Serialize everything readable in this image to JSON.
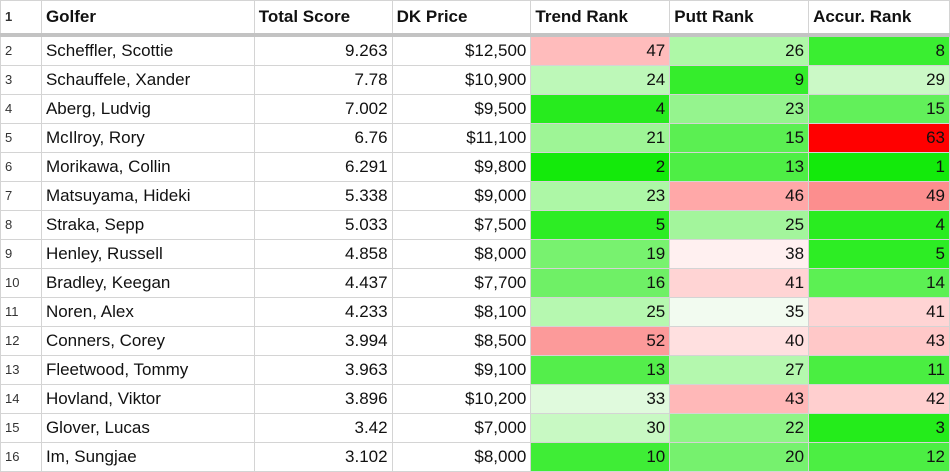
{
  "columns": [
    "Golfer",
    "Total Score",
    "DK Price",
    "Trend Rank",
    "Putt Rank",
    "Accur. Rank"
  ],
  "header_row_number": "1",
  "rows": [
    {
      "n": "2",
      "golfer": "Scheffler, Scottie",
      "score": "9.263",
      "price": "$12,500",
      "trend": "47",
      "putt": "26",
      "accur": "8"
    },
    {
      "n": "3",
      "golfer": "Schauffele, Xander",
      "score": "7.78",
      "price": "$10,900",
      "trend": "24",
      "putt": "9",
      "accur": "29"
    },
    {
      "n": "4",
      "golfer": "Aberg, Ludvig",
      "score": "7.002",
      "price": "$9,500",
      "trend": "4",
      "putt": "23",
      "accur": "15"
    },
    {
      "n": "5",
      "golfer": "McIlroy, Rory",
      "score": "6.76",
      "price": "$11,100",
      "trend": "21",
      "putt": "15",
      "accur": "63"
    },
    {
      "n": "6",
      "golfer": "Morikawa, Collin",
      "score": "6.291",
      "price": "$9,800",
      "trend": "2",
      "putt": "13",
      "accur": "1"
    },
    {
      "n": "7",
      "golfer": "Matsuyama, Hideki",
      "score": "5.338",
      "price": "$9,000",
      "trend": "23",
      "putt": "46",
      "accur": "49"
    },
    {
      "n": "8",
      "golfer": "Straka, Sepp",
      "score": "5.033",
      "price": "$7,500",
      "trend": "5",
      "putt": "25",
      "accur": "4"
    },
    {
      "n": "9",
      "golfer": "Henley, Russell",
      "score": "4.858",
      "price": "$8,000",
      "trend": "19",
      "putt": "38",
      "accur": "5"
    },
    {
      "n": "10",
      "golfer": "Bradley, Keegan",
      "score": "4.437",
      "price": "$7,700",
      "trend": "16",
      "putt": "41",
      "accur": "14"
    },
    {
      "n": "11",
      "golfer": "Noren, Alex",
      "score": "4.233",
      "price": "$8,100",
      "trend": "25",
      "putt": "35",
      "accur": "41"
    },
    {
      "n": "12",
      "golfer": "Conners, Corey",
      "score": "3.994",
      "price": "$8,500",
      "trend": "52",
      "putt": "40",
      "accur": "43"
    },
    {
      "n": "13",
      "golfer": "Fleetwood, Tommy",
      "score": "3.963",
      "price": "$9,100",
      "trend": "13",
      "putt": "27",
      "accur": "11"
    },
    {
      "n": "14",
      "golfer": "Hovland, Viktor",
      "score": "3.896",
      "price": "$10,200",
      "trend": "33",
      "putt": "43",
      "accur": "42"
    },
    {
      "n": "15",
      "golfer": "Glover, Lucas",
      "score": "3.42",
      "price": "$7,000",
      "trend": "30",
      "putt": "22",
      "accur": "3"
    },
    {
      "n": "16",
      "golfer": "Im, Sungjae",
      "score": "3.102",
      "price": "$8,000",
      "trend": "10",
      "putt": "20",
      "accur": "12"
    }
  ],
  "cell_colors": {
    "trend": [
      "#ffbcbc",
      "#bdf8b8",
      "#27eb1e",
      "#9ef596",
      "#14ea0b",
      "#adf7a6",
      "#2ded24",
      "#78f26f",
      "#6ff066",
      "#b6f8b0",
      "#fc9a9a",
      "#54ee4b",
      "#e0fadd",
      "#c8f9c3",
      "#3fed36"
    ],
    "putt": [
      "#aef8a7",
      "#35ed2c",
      "#95f48e",
      "#5bef52",
      "#4eee45",
      "#ffa8a8",
      "#a3f59c",
      "#fff0f0",
      "#ffd4d4",
      "#f2fbf0",
      "#ffe0e0",
      "#b4f8ae",
      "#ffb8b8",
      "#8ef486",
      "#76f16e"
    ],
    "accur": [
      "#3aee31",
      "#cbf9c6",
      "#62f05a",
      "#ff0000",
      "#13ea0b",
      "#fc8e8e",
      "#29ec20",
      "#2ded24",
      "#5cf053",
      "#ffd4d4",
      "#ffc8c8",
      "#4aee41",
      "#ffcfcf",
      "#24ec1b",
      "#4cee43"
    ]
  }
}
